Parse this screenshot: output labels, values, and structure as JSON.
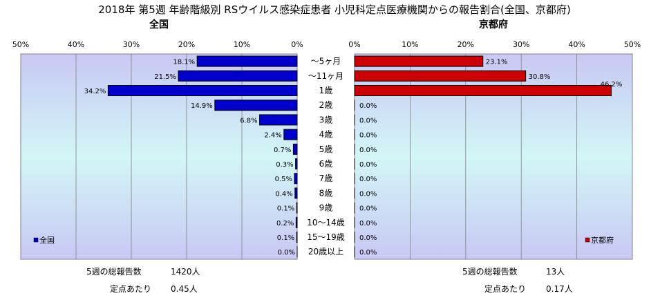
{
  "chart_data": {
    "type": "bar",
    "title": "2018年 第5週 年齢階級別 RSウイルス感染症患者 小児科定点医療機関からの報告割合(全国、京都府)",
    "categories": [
      "～5ヶ月",
      "～11ヶ月",
      "1歳",
      "2歳",
      "3歳",
      "4歳",
      "5歳",
      "6歳",
      "7歳",
      "8歳",
      "9歳",
      "10～14歳",
      "15～19歳",
      "20歳以上"
    ],
    "xlim": [
      0,
      50
    ],
    "x_ticks": [
      "0%",
      "10%",
      "20%",
      "30%",
      "40%",
      "50%"
    ],
    "left_panel": {
      "subtitle": "全国",
      "legend": "全国",
      "color": "#0000cc",
      "values": [
        18.1,
        21.5,
        34.2,
        14.9,
        6.8,
        2.4,
        0.7,
        0.3,
        0.5,
        0.4,
        0.1,
        0.2,
        0.1,
        0.0
      ],
      "labels": [
        "18.1%",
        "21.5%",
        "34.2%",
        "14.9%",
        "6.8%",
        "2.4%",
        "0.7%",
        "0.3%",
        "0.5%",
        "0.4%",
        "0.1%",
        "0.2%",
        "0.1%",
        "0.0%"
      ]
    },
    "right_panel": {
      "subtitle": "京都府",
      "legend": "京都府",
      "color": "#cc0000",
      "values": [
        23.1,
        30.8,
        46.2,
        0.0,
        0.0,
        0.0,
        0.0,
        0.0,
        0.0,
        0.0,
        0.0,
        0.0,
        0.0,
        0.0
      ],
      "labels": [
        "23.1%",
        "30.8%",
        "46.2%",
        "0.0%",
        "0.0%",
        "0.0%",
        "0.0%",
        "0.0%",
        "0.0%",
        "0.0%",
        "0.0%",
        "0.0%",
        "0.0%",
        "0.0%"
      ]
    },
    "grid": true
  },
  "footer": {
    "national_reports_label": "5週の総報告数",
    "national_reports_value": "1420人",
    "national_per_site_label": "定点あたり",
    "national_per_site_value": "0.45人",
    "kyoto_reports_label": "5週の総報告数",
    "kyoto_reports_value": "13人",
    "kyoto_per_site_label": "定点あたり",
    "kyoto_per_site_value": "0.17人"
  }
}
